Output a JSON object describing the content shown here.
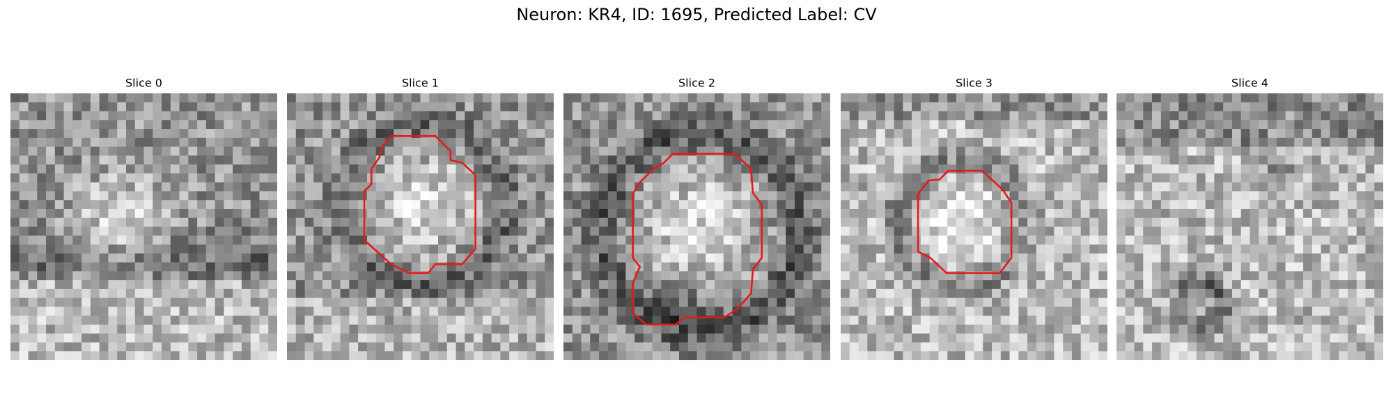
{
  "title": "Neuron: KR4, ID: 1695, Predicted Label: CV",
  "panels": [
    {
      "title": "Slice 0"
    },
    {
      "title": "Slice 1"
    },
    {
      "title": "Slice 2"
    },
    {
      "title": "Slice 3"
    },
    {
      "title": "Slice 4"
    }
  ]
}
